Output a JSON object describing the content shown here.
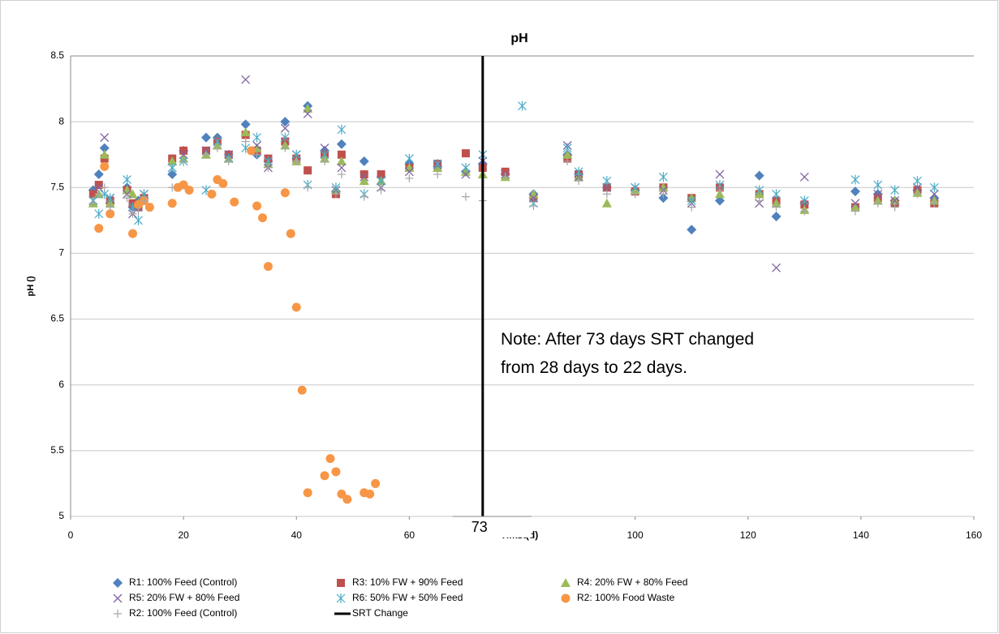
{
  "chart_data": {
    "type": "scatter",
    "title": "pH",
    "x_label": "Time (d)",
    "y_label": "pH ()",
    "xlim": [
      0,
      160
    ],
    "ylim": [
      5,
      8.5
    ],
    "xticks": [
      0,
      20,
      40,
      60,
      80,
      100,
      120,
      140,
      160
    ],
    "yticks": [
      5,
      5.5,
      6,
      6.5,
      7,
      7.5,
      8,
      8.5
    ],
    "grid": true,
    "legend": "bottom",
    "annotations": [
      "Note: After 73 days SRT changed",
      "from 28 days to 22 days.",
      "73"
    ],
    "series": [
      {
        "name": "R1: 100% Feed (Control)",
        "color": "#4f81bd",
        "marker": "diamond",
        "x": [
          4,
          5,
          6,
          7,
          10,
          11,
          12,
          13,
          18,
          20,
          24,
          26,
          28,
          31,
          33,
          35,
          38,
          40,
          42,
          45,
          47,
          48,
          52,
          55,
          60,
          65,
          70,
          73,
          77,
          82,
          88,
          90,
          95,
          100,
          105,
          110,
          115,
          122,
          125,
          130,
          139,
          143,
          146,
          150,
          153
        ],
        "values": [
          7.48,
          7.6,
          7.8,
          7.38,
          7.5,
          7.35,
          7.4,
          7.42,
          7.6,
          7.78,
          7.88,
          7.88,
          7.75,
          7.98,
          7.75,
          7.7,
          8.0,
          7.72,
          8.12,
          7.78,
          7.47,
          7.83,
          7.7,
          7.58,
          7.68,
          7.66,
          7.62,
          7.68,
          7.6,
          7.45,
          7.75,
          7.6,
          7.5,
          7.48,
          7.42,
          7.18,
          7.4,
          7.59,
          7.28,
          7.38,
          7.47,
          7.45,
          7.4,
          7.48,
          7.42
        ]
      },
      {
        "name": "R3: 10% FW + 90% Feed",
        "color": "#c0504d",
        "marker": "square",
        "x": [
          4,
          5,
          6,
          7,
          10,
          11,
          12,
          13,
          18,
          20,
          24,
          26,
          28,
          31,
          33,
          35,
          38,
          40,
          42,
          45,
          47,
          48,
          52,
          55,
          60,
          65,
          70,
          73,
          77,
          82,
          88,
          90,
          95,
          100,
          105,
          110,
          115,
          122,
          125,
          130,
          139,
          143,
          146,
          150,
          153
        ],
        "values": [
          7.45,
          7.52,
          7.72,
          7.4,
          7.48,
          7.38,
          7.35,
          7.42,
          7.72,
          7.78,
          7.78,
          7.85,
          7.75,
          7.9,
          7.78,
          7.72,
          7.85,
          7.72,
          7.63,
          7.75,
          7.45,
          7.75,
          7.6,
          7.6,
          7.65,
          7.68,
          7.76,
          7.65,
          7.62,
          7.42,
          7.72,
          7.6,
          7.5,
          7.47,
          7.5,
          7.42,
          7.5,
          7.45,
          7.4,
          7.37,
          7.35,
          7.42,
          7.38,
          7.48,
          7.38
        ]
      },
      {
        "name": "R4: 20% FW + 80% Feed",
        "color": "#9bbb59",
        "marker": "triangle",
        "x": [
          4,
          5,
          6,
          7,
          10,
          11,
          12,
          13,
          18,
          20,
          24,
          26,
          28,
          31,
          33,
          35,
          38,
          40,
          42,
          45,
          47,
          48,
          52,
          55,
          60,
          65,
          70,
          73,
          77,
          82,
          88,
          90,
          95,
          100,
          105,
          110,
          115,
          122,
          125,
          130,
          139,
          143,
          146,
          150,
          153
        ],
        "values": [
          7.38,
          7.45,
          7.75,
          7.38,
          7.48,
          7.45,
          7.38,
          7.4,
          7.7,
          7.72,
          7.75,
          7.82,
          7.72,
          7.92,
          7.8,
          7.68,
          7.82,
          7.7,
          8.1,
          7.72,
          7.48,
          7.7,
          7.55,
          7.55,
          7.65,
          7.65,
          7.62,
          7.6,
          7.58,
          7.45,
          7.75,
          7.58,
          7.38,
          7.48,
          7.5,
          7.42,
          7.45,
          7.45,
          7.38,
          7.33,
          7.35,
          7.4,
          7.4,
          7.46,
          7.4
        ]
      },
      {
        "name": "R5: 20% FW + 80% Feed",
        "color": "#8064a2",
        "marker": "x",
        "x": [
          4,
          5,
          6,
          7,
          10,
          11,
          12,
          13,
          18,
          20,
          24,
          26,
          28,
          31,
          33,
          35,
          38,
          40,
          42,
          45,
          47,
          48,
          52,
          55,
          60,
          65,
          70,
          73,
          77,
          82,
          88,
          90,
          95,
          100,
          105,
          110,
          115,
          122,
          125,
          130,
          139,
          143,
          146,
          150,
          153
        ],
        "values": [
          7.4,
          7.5,
          7.88,
          7.42,
          7.45,
          7.3,
          7.35,
          7.45,
          7.65,
          7.75,
          7.78,
          7.85,
          7.75,
          8.32,
          7.82,
          7.65,
          7.95,
          7.75,
          8.06,
          7.8,
          7.48,
          7.65,
          7.58,
          7.5,
          7.62,
          7.67,
          7.6,
          7.7,
          7.6,
          7.42,
          7.82,
          7.58,
          7.5,
          7.5,
          7.48,
          7.38,
          7.6,
          7.38,
          6.89,
          7.58,
          7.38,
          7.45,
          7.4,
          7.5,
          7.45
        ]
      },
      {
        "name": "R6: 50% FW + 50% Feed",
        "color": "#4bacc6",
        "marker": "asterisk",
        "x": [
          4,
          5,
          6,
          7,
          10,
          11,
          12,
          13,
          18,
          20,
          24,
          26,
          28,
          31,
          33,
          35,
          38,
          40,
          42,
          45,
          47,
          48,
          52,
          55,
          60,
          65,
          70,
          73,
          80,
          82,
          88,
          90,
          95,
          100,
          105,
          110,
          115,
          122,
          125,
          130,
          139,
          143,
          146,
          150,
          153
        ],
        "values": [
          7.4,
          7.3,
          7.45,
          7.42,
          7.56,
          7.35,
          7.25,
          7.45,
          7.65,
          7.7,
          7.48,
          7.85,
          7.72,
          7.8,
          7.88,
          7.7,
          7.88,
          7.75,
          7.52,
          7.75,
          7.5,
          7.94,
          7.45,
          7.55,
          7.72,
          7.68,
          7.65,
          7.75,
          8.12,
          7.38,
          7.8,
          7.62,
          7.55,
          7.5,
          7.58,
          7.4,
          7.52,
          7.48,
          7.45,
          7.4,
          7.56,
          7.52,
          7.48,
          7.55,
          7.5
        ]
      },
      {
        "name": "R2: 100% Food Waste",
        "color": "#f79646",
        "marker": "circle",
        "x": [
          5,
          6,
          7,
          11,
          12,
          13,
          14,
          18,
          19,
          20,
          21,
          25,
          26,
          27,
          29,
          32,
          33,
          34,
          35,
          38,
          39,
          40,
          41,
          42,
          45,
          46,
          47,
          48,
          49,
          52,
          53,
          54
        ],
        "values": [
          7.19,
          7.66,
          7.3,
          7.15,
          7.37,
          7.4,
          7.35,
          7.38,
          7.5,
          7.52,
          7.48,
          7.45,
          7.56,
          7.53,
          7.39,
          7.78,
          7.36,
          7.27,
          6.9,
          7.46,
          7.15,
          6.59,
          5.96,
          5.18,
          5.31,
          5.44,
          5.34,
          5.17,
          5.13,
          5.18,
          5.17,
          5.25
        ]
      },
      {
        "name": "R2: 100% Feed (Control)",
        "color": "#a6a6a6",
        "marker": "plus",
        "x": [
          4,
          5,
          6,
          7,
          10,
          11,
          12,
          13,
          18,
          20,
          24,
          26,
          28,
          31,
          33,
          35,
          38,
          40,
          42,
          45,
          47,
          48,
          52,
          55,
          60,
          65,
          70,
          73,
          77,
          82,
          88,
          90,
          95,
          100,
          105,
          110,
          115,
          122,
          125,
          130,
          139,
          143,
          146,
          150,
          153
        ],
        "values": [
          7.38,
          7.45,
          7.5,
          7.35,
          7.42,
          7.3,
          7.32,
          7.4,
          7.5,
          7.7,
          7.75,
          7.8,
          7.7,
          7.85,
          7.75,
          7.65,
          7.8,
          7.7,
          7.5,
          7.7,
          7.45,
          7.6,
          7.43,
          7.48,
          7.57,
          7.6,
          7.43,
          7.4,
          7.58,
          7.36,
          7.7,
          7.55,
          7.45,
          7.45,
          7.45,
          7.35,
          7.48,
          7.4,
          7.35,
          7.32,
          7.32,
          7.38,
          7.35,
          7.45,
          7.38
        ]
      },
      {
        "name": "SRT Change",
        "color": "#000000",
        "marker": "line",
        "x": [
          73,
          73
        ],
        "values": [
          5,
          8.5
        ]
      }
    ]
  }
}
